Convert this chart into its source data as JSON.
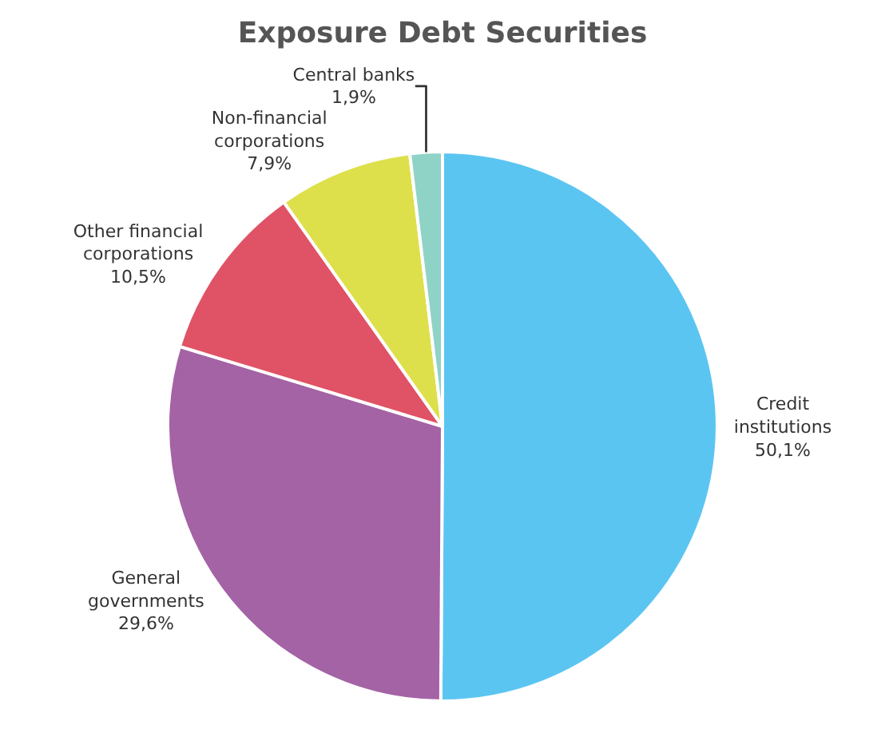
{
  "chart_data": {
    "type": "pie",
    "title": "Exposure Debt Securities",
    "categories": [
      "Credit institutions",
      "General governments",
      "Other financial corporations",
      "Non-financial corporations",
      "Central banks"
    ],
    "values": [
      50.1,
      29.6,
      10.5,
      7.9,
      1.9
    ],
    "colors": [
      "#5bc5f2",
      "#a463a5",
      "#e05265",
      "#dde04a",
      "#8fd3c6"
    ],
    "value_labels": [
      "50,1%",
      "29,6%",
      "10,5%",
      "7,9%",
      "1,9%"
    ]
  }
}
